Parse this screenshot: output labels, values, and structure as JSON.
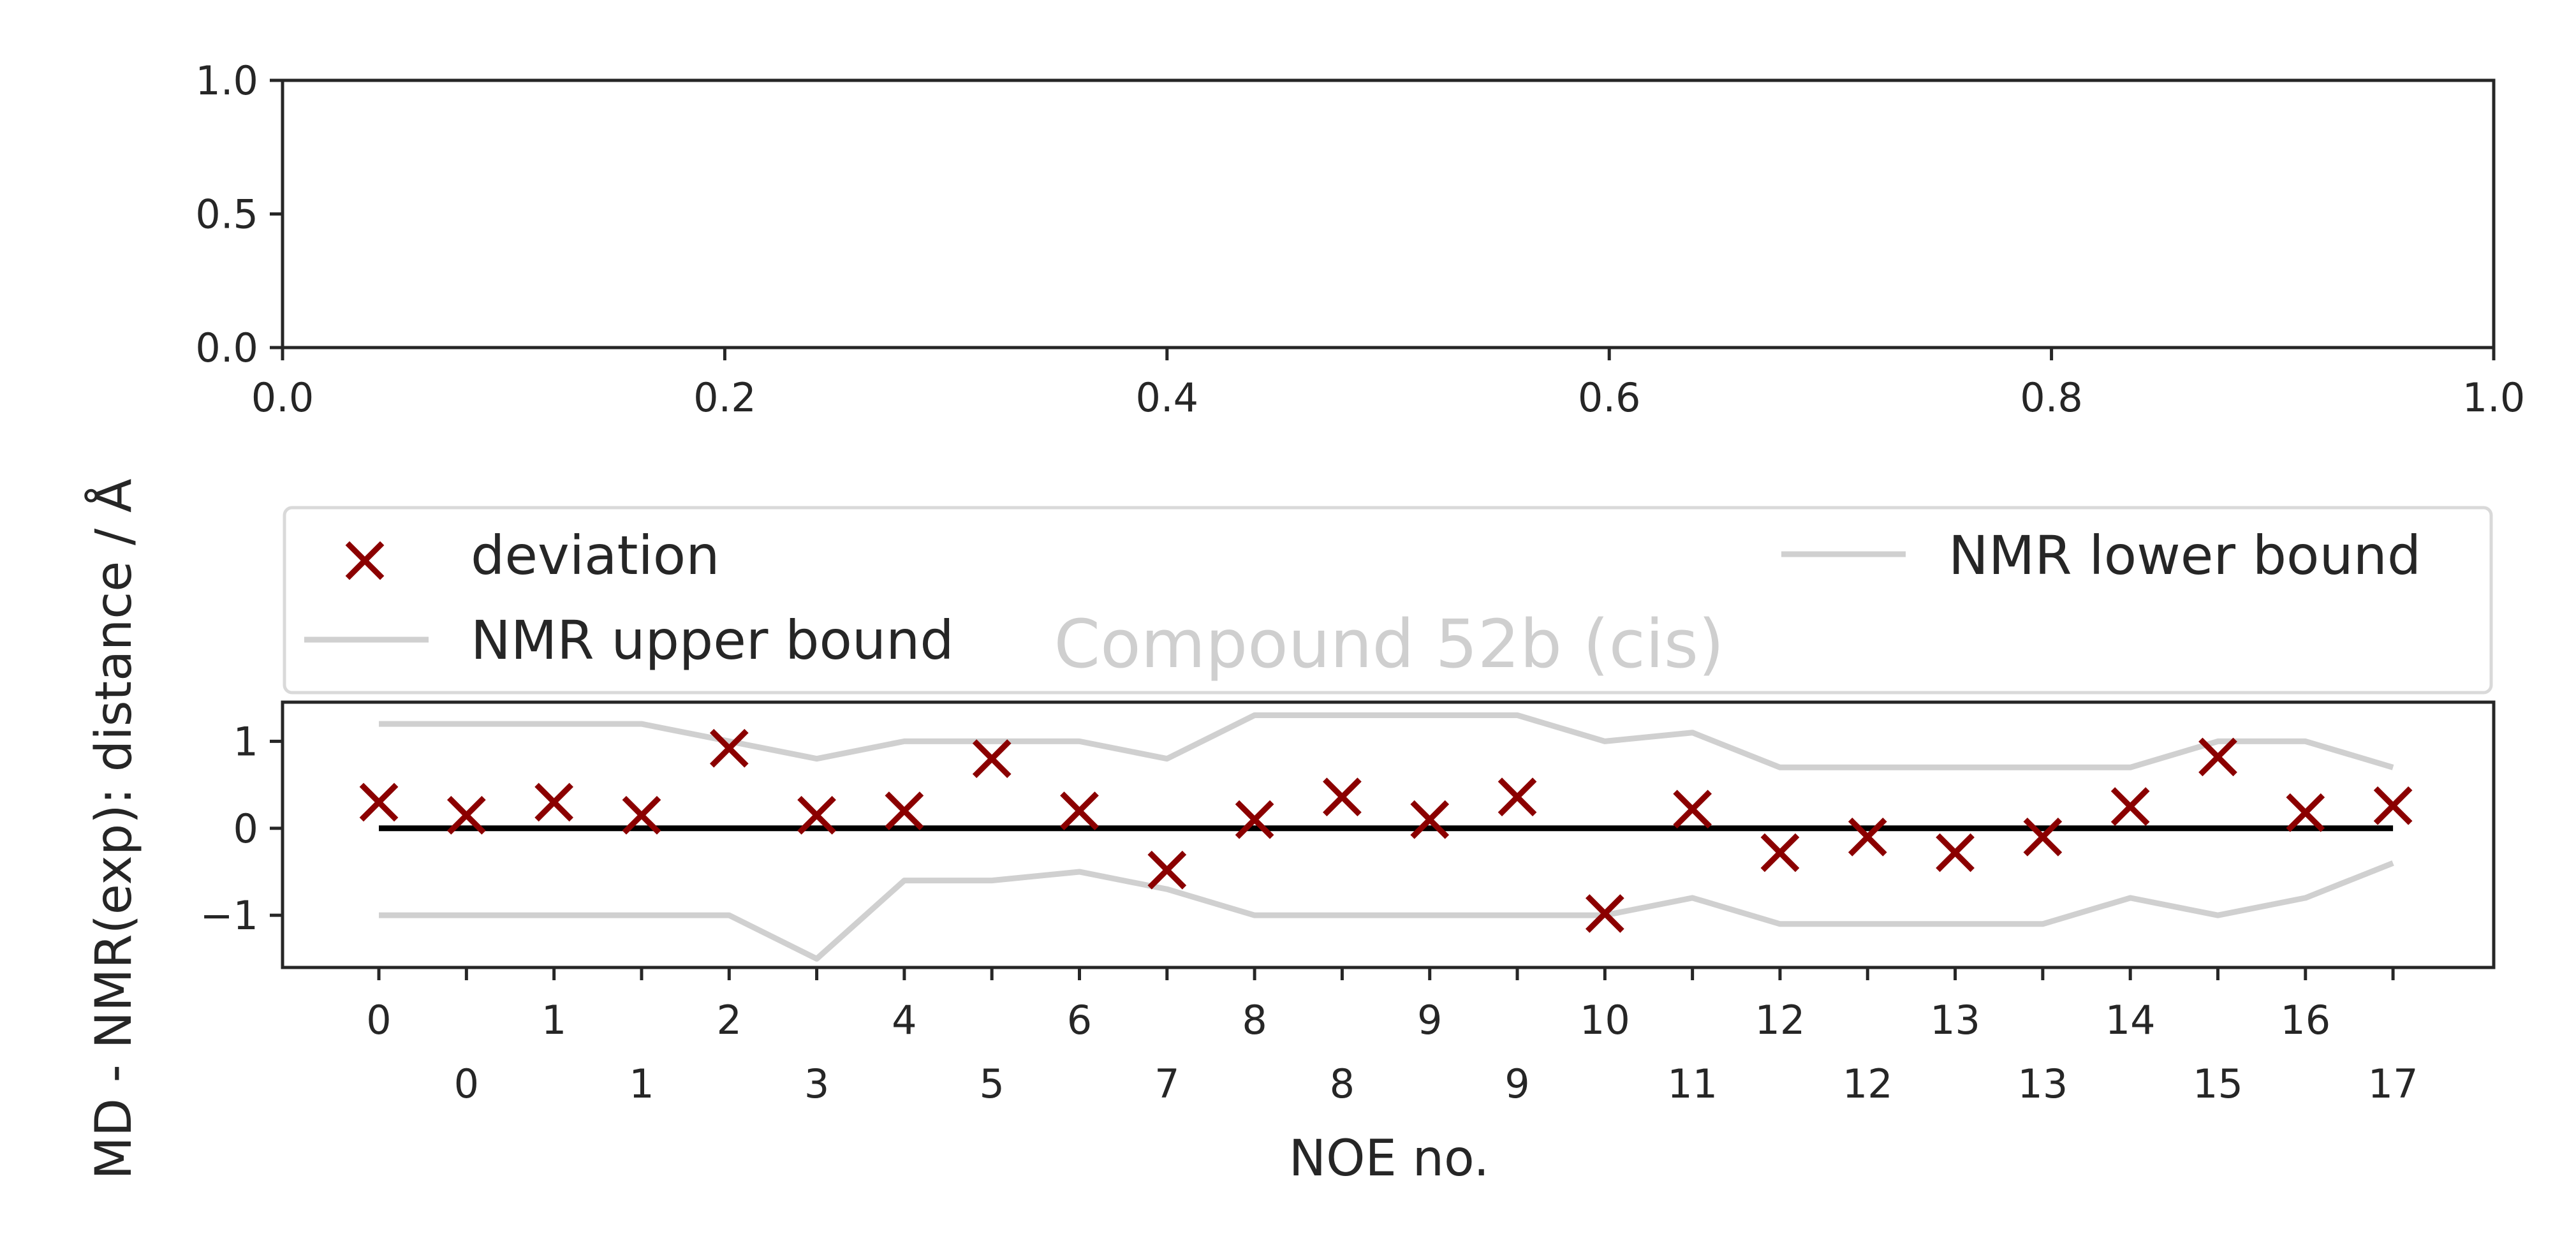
{
  "chart_data": [
    {
      "type": "scatter",
      "title": "",
      "xlabel": "",
      "ylabel": "",
      "xlim": [
        0,
        1
      ],
      "ylim": [
        0,
        1
      ],
      "x_ticks": [
        "0.0",
        "0.2",
        "0.4",
        "0.6",
        "0.8",
        "1.0"
      ],
      "y_ticks": [
        "0.0",
        "0.5",
        "1.0"
      ],
      "grid": false,
      "series": []
    },
    {
      "type": "scatter",
      "title": "Compound 52b (cis)",
      "xlabel": "NOE no.",
      "ylabel": "MD - NMR(exp): distance / Å",
      "xlim": [
        -1.1,
        24.15
      ],
      "ylim": [
        -1.6,
        1.45
      ],
      "y_ticks": [
        "1",
        "0",
        "−1"
      ],
      "x_tick_labels_top": [
        "0",
        "1",
        "2",
        "4",
        "6",
        "8",
        "9",
        "10",
        "12",
        "13",
        "14",
        "16"
      ],
      "x_tick_labels_bottom": [
        "0",
        "1",
        "3",
        "5",
        "7",
        "8",
        "9",
        "11",
        "12",
        "13",
        "15",
        "17"
      ],
      "grid": false,
      "legend_position": "above-plot",
      "legend": {
        "deviation": "deviation",
        "upper": "NMR upper bound",
        "lower": "NMR lower bound"
      },
      "x": [
        0,
        1,
        2,
        3,
        4,
        5,
        6,
        7,
        8,
        9,
        10,
        11,
        12,
        13,
        14,
        15,
        16,
        17,
        18,
        19,
        20,
        21,
        22,
        23
      ],
      "series": [
        {
          "name": "deviation",
          "color": "#8b0000",
          "values": [
            0.3,
            0.15,
            0.3,
            0.15,
            0.92,
            0.15,
            0.2,
            0.8,
            0.2,
            -0.48,
            0.1,
            0.36,
            0.1,
            0.36,
            -0.98,
            0.22,
            -0.28,
            -0.1,
            -0.28,
            -0.1,
            0.25,
            0.82,
            0.18,
            0.26
          ]
        },
        {
          "name": "NMR upper bound",
          "color": "#d0d0d0",
          "values": [
            1.2,
            1.2,
            1.2,
            1.2,
            1.0,
            0.8,
            1.0,
            1.0,
            1.0,
            0.8,
            1.3,
            1.3,
            1.3,
            1.3,
            1.0,
            1.1,
            0.7,
            0.7,
            0.7,
            0.7,
            0.7,
            1.0,
            1.0,
            0.7
          ]
        },
        {
          "name": "NMR lower bound",
          "color": "#d0d0d0",
          "values": [
            -1.0,
            -1.0,
            -1.0,
            -1.0,
            -1.0,
            -1.5,
            -0.6,
            -0.6,
            -0.5,
            -0.7,
            -1.0,
            -1.0,
            -1.0,
            -1.0,
            -1.0,
            -0.8,
            -1.1,
            -1.1,
            -1.1,
            -1.1,
            -0.8,
            -1.0,
            -0.8,
            -0.4
          ]
        },
        {
          "name": "zero line",
          "color": "#000000",
          "values": [
            0,
            0
          ]
        }
      ]
    }
  ]
}
